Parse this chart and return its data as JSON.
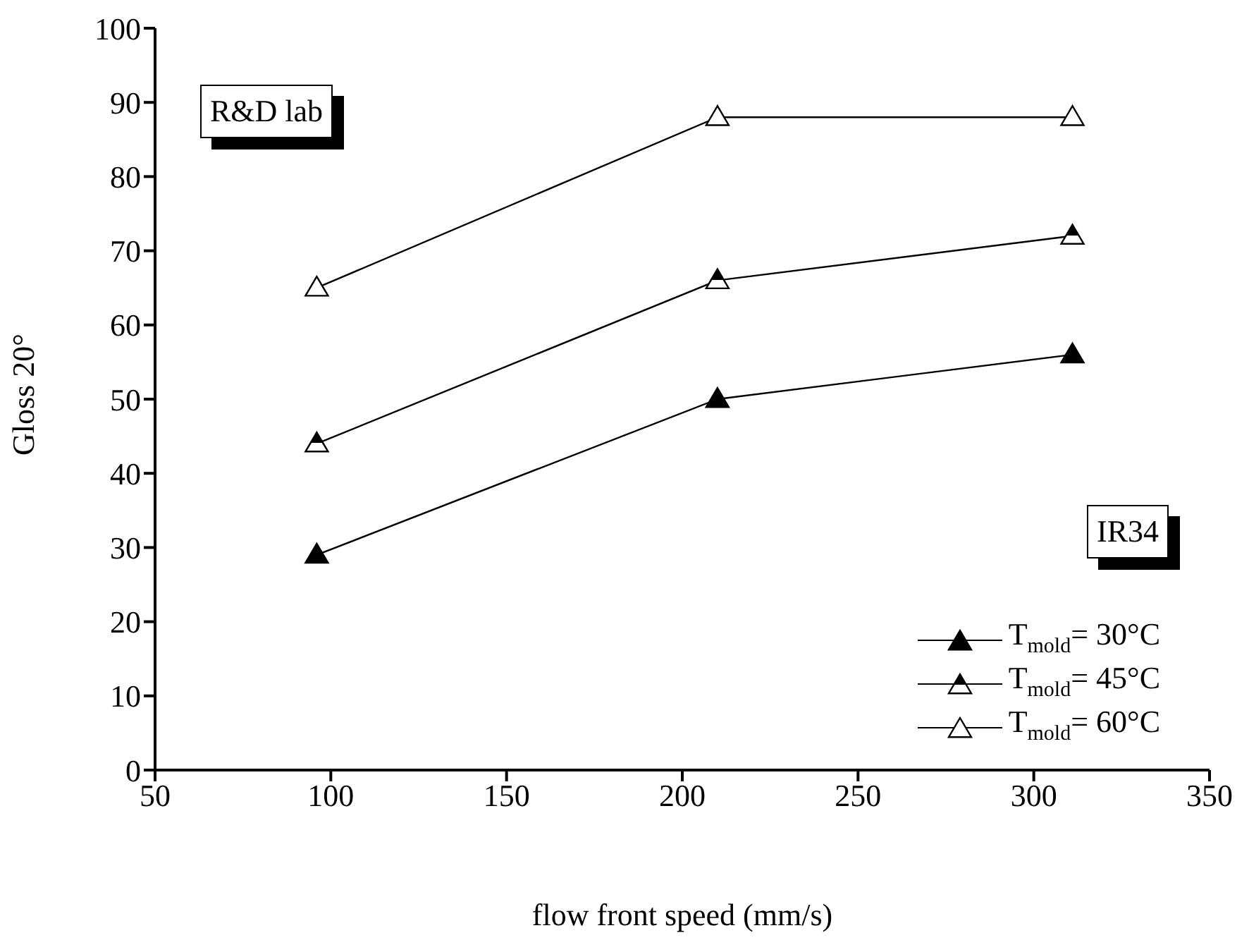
{
  "chart_data": {
    "type": "line",
    "xlabel": "flow front speed (mm/s)",
    "ylabel": "Gloss 20°",
    "x": [
      96,
      210,
      311
    ],
    "series": [
      {
        "name": "T$_{mold}$= 30°C",
        "color": "#000000",
        "values": [
          29,
          50,
          56
        ]
      },
      {
        "name": "T$_{mold}$= 45°C",
        "color": "#000000",
        "values": [
          44,
          66,
          72
        ]
      },
      {
        "name": "T$_{mold}$= 60°C",
        "color": "#000000",
        "values": [
          65,
          88,
          88
        ]
      }
    ],
    "xlim": [
      50,
      350
    ],
    "xticks": [
      50,
      100,
      150,
      200,
      250,
      300,
      350
    ],
    "ylim": [
      0,
      100
    ],
    "yticks": [
      0,
      10,
      20,
      30,
      40,
      50,
      60,
      70,
      80,
      90,
      100
    ],
    "annotations": [
      "R&D lab",
      "IR34"
    ],
    "grid": false,
    "legend": "bottom right",
    "marker": "triangle",
    "line_style": "solid"
  }
}
